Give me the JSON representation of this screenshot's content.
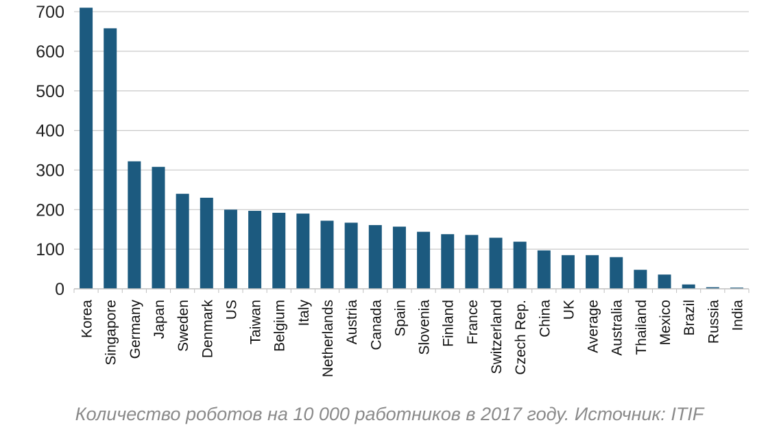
{
  "chart_data": {
    "type": "bar",
    "categories": [
      "Korea",
      "Singapore",
      "Germany",
      "Japan",
      "Sweden",
      "Denmark",
      "US",
      "Taiwan",
      "Belgium",
      "Italy",
      "Netherlands",
      "Austria",
      "Canada",
      "Spain",
      "Slovenia",
      "Finland",
      "France",
      "Switzerland",
      "Czech Rep.",
      "China",
      "UK",
      "Average",
      "Australia",
      "Thailand",
      "Mexico",
      "Brazil",
      "Russia",
      "India"
    ],
    "values": [
      710,
      658,
      322,
      308,
      240,
      230,
      200,
      197,
      192,
      190,
      172,
      167,
      161,
      157,
      144,
      138,
      136,
      129,
      119,
      97,
      85,
      85,
      80,
      48,
      36,
      11,
      4,
      3
    ],
    "ylim": [
      0,
      700
    ],
    "yticks": [
      0,
      100,
      200,
      300,
      400,
      500,
      600,
      700
    ],
    "grid": true,
    "bar_color": "#1c5a7f",
    "grid_color": "#c8c8c8"
  },
  "caption": "Количество роботов на 10 000 работников в 2017 году. Источник: ITIF"
}
